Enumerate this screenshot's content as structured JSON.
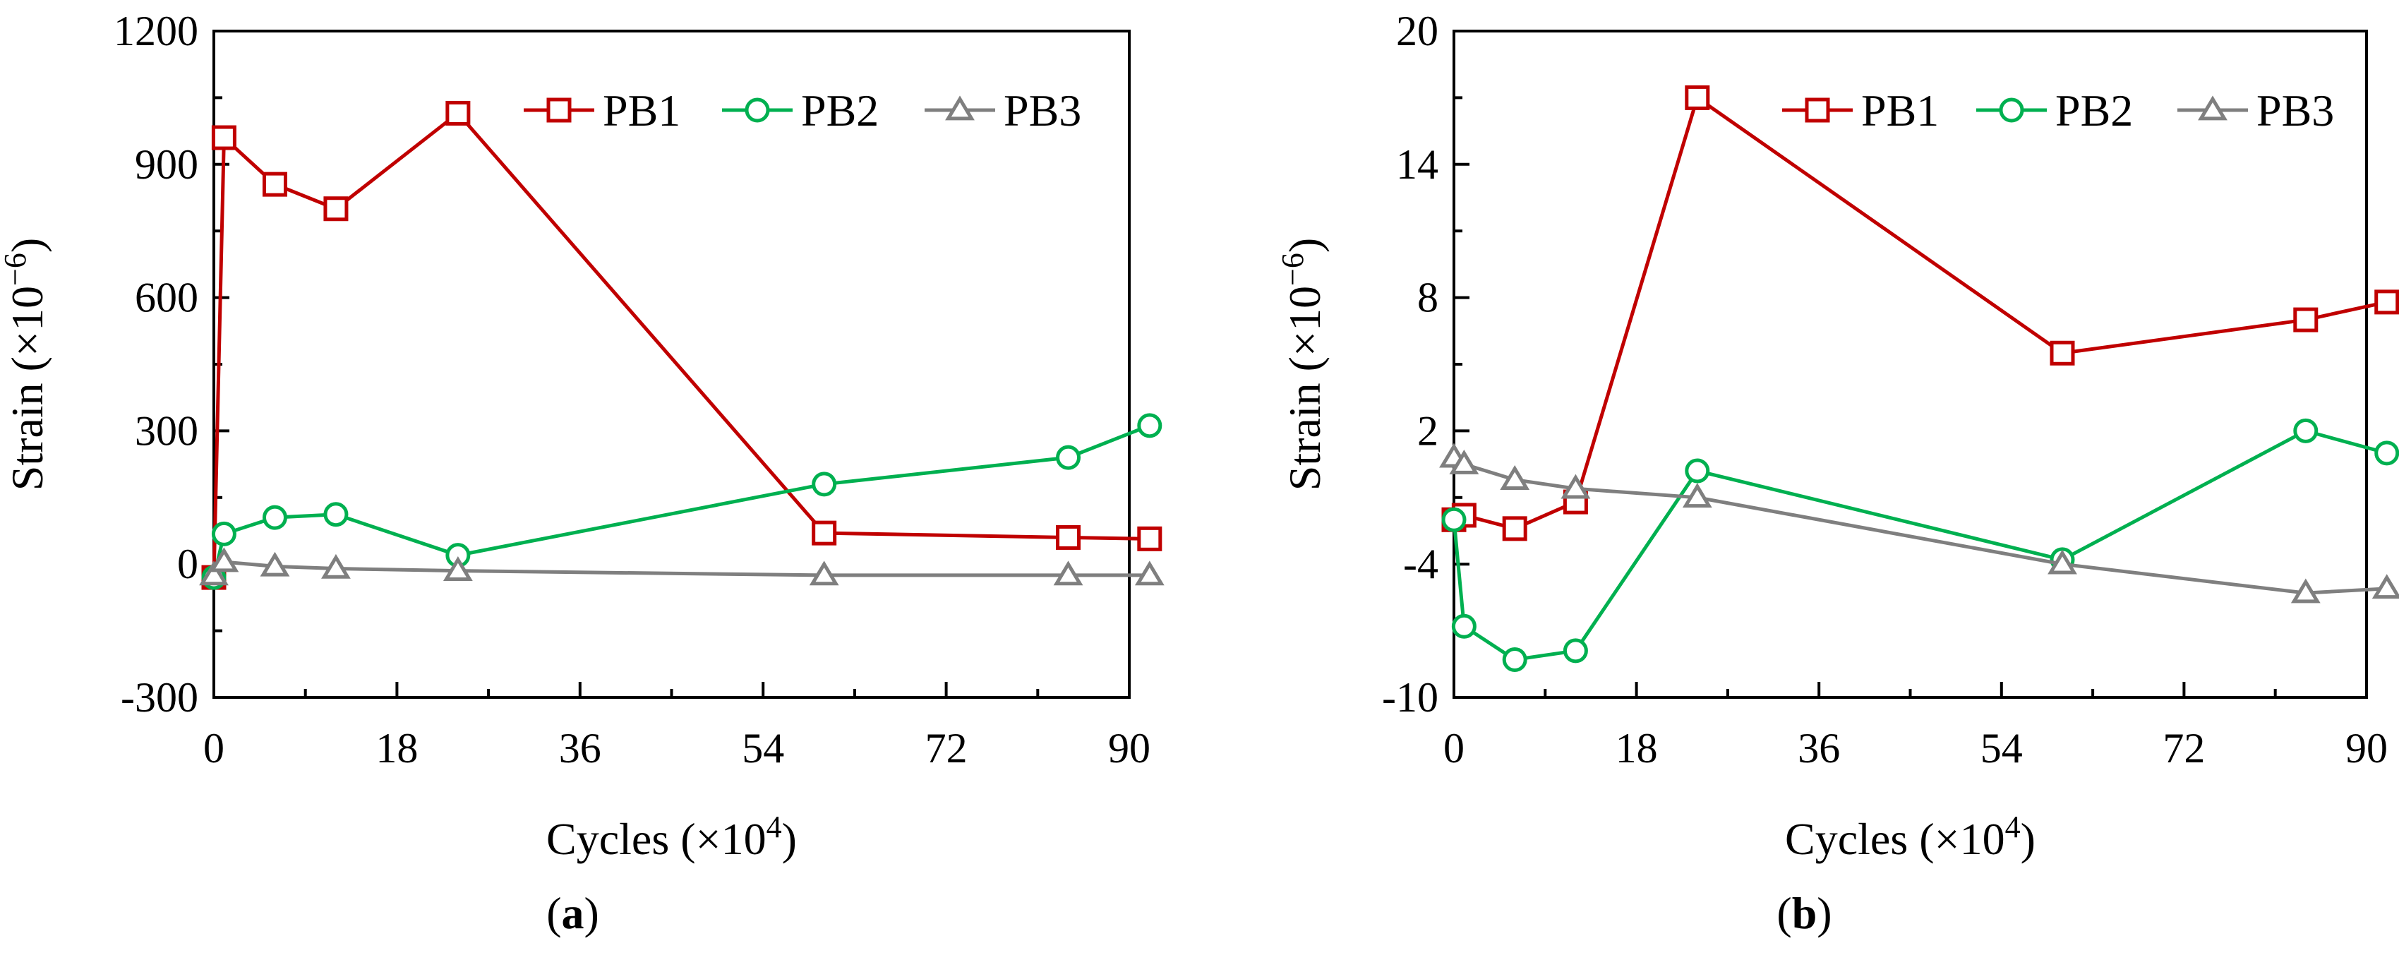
{
  "chart_data": [
    {
      "type": "line",
      "panel_label": "a",
      "xlabel": "Cycles (×10",
      "xlabel_sup": "4",
      "xlabel_close": ")",
      "ylabel": "Strain (×10",
      "ylabel_sup": "−6",
      "ylabel_close": ")",
      "xlim": [
        0,
        90
      ],
      "ylim": [
        -300,
        1200
      ],
      "xticks": [
        0,
        18,
        36,
        54,
        72,
        90
      ],
      "yticks": [
        -300,
        0,
        300,
        600,
        900,
        1200
      ],
      "xtick_labels": [
        "0",
        "18",
        "36",
        "54",
        "72",
        "90"
      ],
      "ytick_labels": [
        "-300",
        "0",
        "300",
        "600",
        "900",
        "1200"
      ],
      "grid": false,
      "legend_position": "top-right",
      "series": [
        {
          "name": "PB1",
          "color": "#C00000",
          "marker": "square",
          "x": [
            0,
            1,
            6,
            12,
            24,
            60,
            84,
            92
          ],
          "y": [
            -30,
            960,
            855,
            800,
            1015,
            70,
            60,
            57
          ]
        },
        {
          "name": "PB2",
          "color": "#00B050",
          "marker": "circle",
          "x": [
            0,
            1,
            6,
            12,
            24,
            60,
            84,
            92
          ],
          "y": [
            -30,
            68,
            105,
            112,
            20,
            180,
            240,
            312
          ]
        },
        {
          "name": "PB3",
          "color": "#7F7F7F",
          "marker": "triangle",
          "x": [
            0,
            1,
            6,
            12,
            24,
            60,
            84,
            92
          ],
          "y": [
            -25,
            5,
            -5,
            -10,
            -15,
            -25,
            -25,
            -25
          ]
        }
      ]
    },
    {
      "type": "line",
      "panel_label": "b",
      "xlabel": "Cycles (×10",
      "xlabel_sup": "4",
      "xlabel_close": ")",
      "ylabel": "Strain (×10",
      "ylabel_sup": "−6",
      "ylabel_close": ")",
      "xlim": [
        0,
        90
      ],
      "ylim": [
        -10,
        20
      ],
      "xticks": [
        0,
        18,
        36,
        54,
        72,
        90
      ],
      "yticks": [
        -10,
        -4,
        2,
        8,
        14,
        20
      ],
      "xtick_labels": [
        "0",
        "18",
        "36",
        "54",
        "72",
        "90"
      ],
      "ytick_labels": [
        "-10",
        "-4",
        "2",
        "8",
        "14",
        "20"
      ],
      "grid": false,
      "legend_position": "top-right",
      "series": [
        {
          "name": "PB1",
          "color": "#C00000",
          "marker": "square",
          "x": [
            0,
            1,
            6,
            12,
            24,
            60,
            84,
            92
          ],
          "y": [
            -2.0,
            -1.8,
            -2.4,
            -1.2,
            17.0,
            5.5,
            7.0,
            7.8
          ]
        },
        {
          "name": "PB2",
          "color": "#00B050",
          "marker": "circle",
          "x": [
            0,
            1,
            6,
            12,
            24,
            60,
            84,
            92
          ],
          "y": [
            -2.0,
            -6.8,
            -8.3,
            -7.9,
            0.2,
            -3.8,
            2.0,
            1.0
          ]
        },
        {
          "name": "PB3",
          "color": "#7F7F7F",
          "marker": "triangle",
          "x": [
            0,
            1,
            6,
            12,
            24,
            60,
            84,
            92
          ],
          "y": [
            0.8,
            0.5,
            -0.2,
            -0.6,
            -1.0,
            -4.0,
            -5.3,
            -5.1
          ]
        }
      ]
    }
  ]
}
